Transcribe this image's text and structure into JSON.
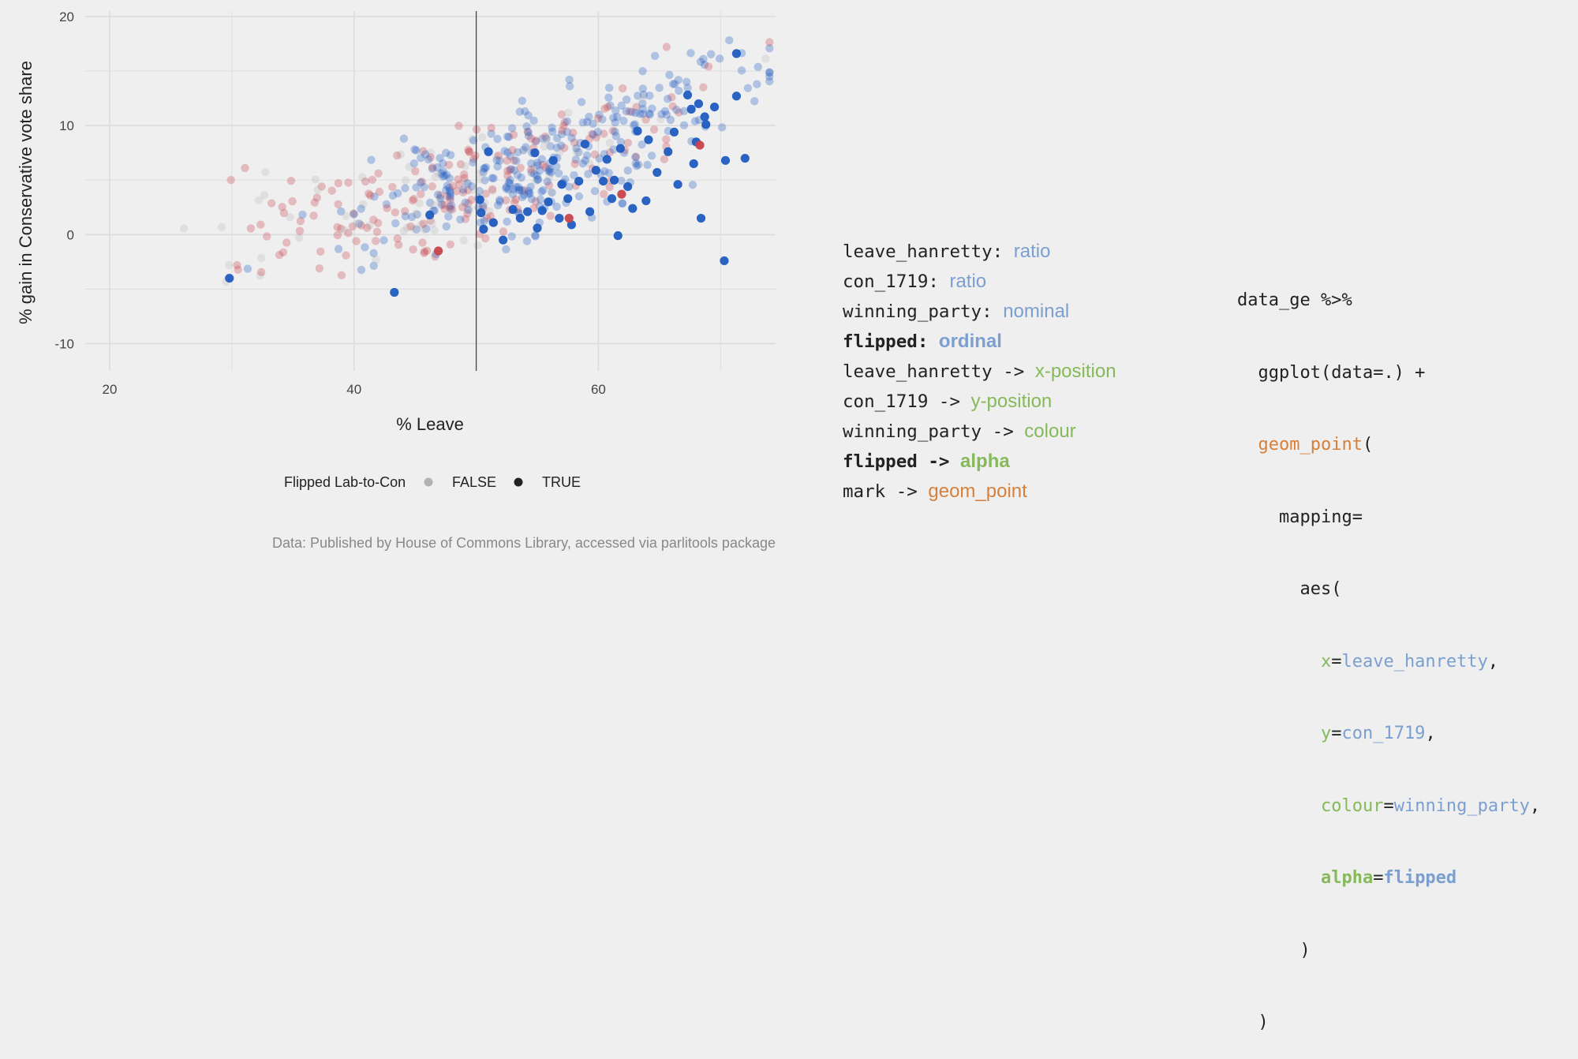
{
  "colors": {
    "background": "#efefef",
    "gridline": "#dcdcdc",
    "conservative": "#1f5bbf",
    "labour": "#c8434b",
    "other": "#b8b8b8",
    "field_type": "#7a9fd0",
    "visual_channel": "#86b95a",
    "mark": "#d6803b",
    "code_text": "#222222"
  },
  "chart_data": {
    "type": "scatter",
    "xlabel": "% Leave",
    "ylabel": "% gain in Conservative vote share",
    "xlim": [
      18,
      74.5
    ],
    "ylim": [
      -12.5,
      20.5
    ],
    "x_ticks": [
      20,
      40,
      60
    ],
    "y_ticks": [
      -10,
      0,
      10,
      20
    ],
    "grid": true,
    "reference_line_x": 50,
    "legend": {
      "title": "Flipped Lab-to-Con",
      "position": "bottom",
      "items": [
        {
          "label": "FALSE",
          "opacity": 0.3
        },
        {
          "label": "TRUE",
          "opacity": 1.0
        }
      ]
    },
    "caption": "Data: Published by House of Commons Library, accessed via parlitools package",
    "encoding": {
      "x": "leave_hanretty",
      "y": "con_1719",
      "colour": "winning_party",
      "alpha": "flipped"
    },
    "flipped_points": [
      {
        "x": 29.8,
        "y": -4.0,
        "party": "con"
      },
      {
        "x": 43.3,
        "y": -5.3,
        "party": "con"
      },
      {
        "x": 46.2,
        "y": 1.8,
        "party": "con"
      },
      {
        "x": 50.3,
        "y": 3.2,
        "party": "con"
      },
      {
        "x": 50.4,
        "y": 2.0,
        "party": "con"
      },
      {
        "x": 50.6,
        "y": 0.5,
        "party": "con"
      },
      {
        "x": 51.0,
        "y": 7.6,
        "party": "con"
      },
      {
        "x": 51.4,
        "y": 1.1,
        "party": "con"
      },
      {
        "x": 52.2,
        "y": -0.5,
        "party": "con"
      },
      {
        "x": 53.0,
        "y": 2.3,
        "party": "con"
      },
      {
        "x": 53.6,
        "y": 1.5,
        "party": "con"
      },
      {
        "x": 54.2,
        "y": 2.1,
        "party": "con"
      },
      {
        "x": 54.8,
        "y": 7.5,
        "party": "con"
      },
      {
        "x": 55.0,
        "y": 0.6,
        "party": "con"
      },
      {
        "x": 55.4,
        "y": 2.2,
        "party": "con"
      },
      {
        "x": 55.9,
        "y": 3.0,
        "party": "con"
      },
      {
        "x": 56.3,
        "y": 6.8,
        "party": "con"
      },
      {
        "x": 56.8,
        "y": 1.5,
        "party": "con"
      },
      {
        "x": 57.0,
        "y": 4.6,
        "party": "con"
      },
      {
        "x": 57.5,
        "y": 3.3,
        "party": "con"
      },
      {
        "x": 57.8,
        "y": 0.9,
        "party": "con"
      },
      {
        "x": 58.4,
        "y": 4.9,
        "party": "con"
      },
      {
        "x": 58.9,
        "y": 8.3,
        "party": "con"
      },
      {
        "x": 59.3,
        "y": 2.1,
        "party": "con"
      },
      {
        "x": 59.8,
        "y": 5.9,
        "party": "con"
      },
      {
        "x": 60.4,
        "y": 4.9,
        "party": "con"
      },
      {
        "x": 60.7,
        "y": 6.9,
        "party": "con"
      },
      {
        "x": 61.1,
        "y": 3.3,
        "party": "con"
      },
      {
        "x": 61.3,
        "y": 5.0,
        "party": "con"
      },
      {
        "x": 61.6,
        "y": -0.1,
        "party": "con"
      },
      {
        "x": 61.8,
        "y": 7.9,
        "party": "con"
      },
      {
        "x": 62.4,
        "y": 4.4,
        "party": "con"
      },
      {
        "x": 62.8,
        "y": 2.4,
        "party": "con"
      },
      {
        "x": 63.2,
        "y": 9.5,
        "party": "con"
      },
      {
        "x": 63.9,
        "y": 3.1,
        "party": "con"
      },
      {
        "x": 64.1,
        "y": 8.7,
        "party": "con"
      },
      {
        "x": 64.8,
        "y": 5.7,
        "party": "con"
      },
      {
        "x": 65.7,
        "y": 7.6,
        "party": "con"
      },
      {
        "x": 66.2,
        "y": 9.4,
        "party": "con"
      },
      {
        "x": 66.5,
        "y": 4.6,
        "party": "con"
      },
      {
        "x": 67.3,
        "y": 12.8,
        "party": "con"
      },
      {
        "x": 67.6,
        "y": 11.5,
        "party": "con"
      },
      {
        "x": 67.8,
        "y": 6.5,
        "party": "con"
      },
      {
        "x": 68.0,
        "y": 8.5,
        "party": "con"
      },
      {
        "x": 68.2,
        "y": 12.0,
        "party": "con"
      },
      {
        "x": 68.4,
        "y": 1.5,
        "party": "con"
      },
      {
        "x": 68.7,
        "y": 10.8,
        "party": "con"
      },
      {
        "x": 68.8,
        "y": 10.1,
        "party": "con"
      },
      {
        "x": 69.5,
        "y": 11.7,
        "party": "con"
      },
      {
        "x": 70.3,
        "y": -2.4,
        "party": "con"
      },
      {
        "x": 70.4,
        "y": 6.8,
        "party": "con"
      },
      {
        "x": 71.3,
        "y": 12.7,
        "party": "con"
      },
      {
        "x": 71.3,
        "y": 16.6,
        "party": "con"
      },
      {
        "x": 72.0,
        "y": 7.0,
        "party": "con"
      },
      {
        "x": 46.9,
        "y": -1.5,
        "party": "lab"
      },
      {
        "x": 57.6,
        "y": 1.5,
        "party": "lab"
      },
      {
        "x": 61.9,
        "y": 3.7,
        "party": "lab"
      },
      {
        "x": 68.3,
        "y": 8.2,
        "party": "lab"
      }
    ],
    "background_points_note": "several hundred semi-transparent constituency points (FALSE), blue/red/grey by winning party, rising from lower-left to upper-right"
  },
  "mappings": [
    {
      "left": "leave_hanretty",
      "sep": ": ",
      "right": "ratio",
      "kind": "type",
      "bold": false
    },
    {
      "left": "con_1719",
      "sep": ": ",
      "right": "ratio",
      "kind": "type",
      "bold": false
    },
    {
      "left": "winning_party",
      "sep": ": ",
      "right": "nominal",
      "kind": "type",
      "bold": false
    },
    {
      "left": "flipped",
      "sep": ": ",
      "right": "ordinal",
      "kind": "type",
      "bold": true
    },
    {
      "left": "leave_hanretty",
      "sep": " -> ",
      "right": "x-position",
      "kind": "channel",
      "bold": false
    },
    {
      "left": "con_1719",
      "sep": " -> ",
      "right": "y-position",
      "kind": "channel",
      "bold": false
    },
    {
      "left": "winning_party",
      "sep": " -> ",
      "right": "colour",
      "kind": "channel",
      "bold": false
    },
    {
      "left": "flipped",
      "sep": " -> ",
      "right": "alpha",
      "kind": "channel",
      "bold": true
    },
    {
      "left": "mark",
      "sep": " -> ",
      "right": "geom_point",
      "kind": "mark",
      "bold": false
    }
  ],
  "code": {
    "line1": "data_ge %>%",
    "line2": "ggplot(data=.) +",
    "line3_fn": "geom_point",
    "line3_paren": "(",
    "line4": "mapping=",
    "line5": "aes(",
    "line6_arg": "x",
    "line6_val": "leave_hanretty",
    "line7_arg": "y",
    "line7_val": "con_1719",
    "line8_arg": "colour",
    "line8_val": "winning_party",
    "line9_arg": "alpha",
    "line9_val": "flipped",
    "eq": "=",
    "comma": ",",
    "close1": ")",
    "close2": ")"
  }
}
